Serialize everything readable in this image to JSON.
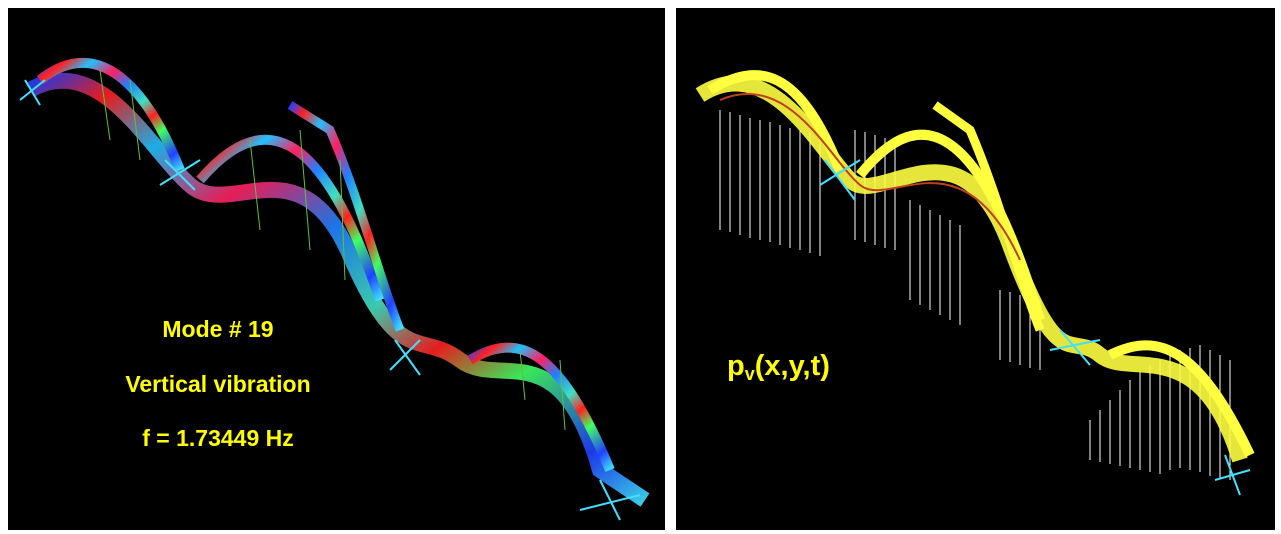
{
  "left_panel": {
    "lines": [
      "Mode # 19",
      "Vertical vibration",
      "f = 1.73449 Hz"
    ]
  },
  "right_panel": {
    "label": {
      "base": "p",
      "subscript": "v",
      "rest": "(x,y,t)"
    }
  }
}
